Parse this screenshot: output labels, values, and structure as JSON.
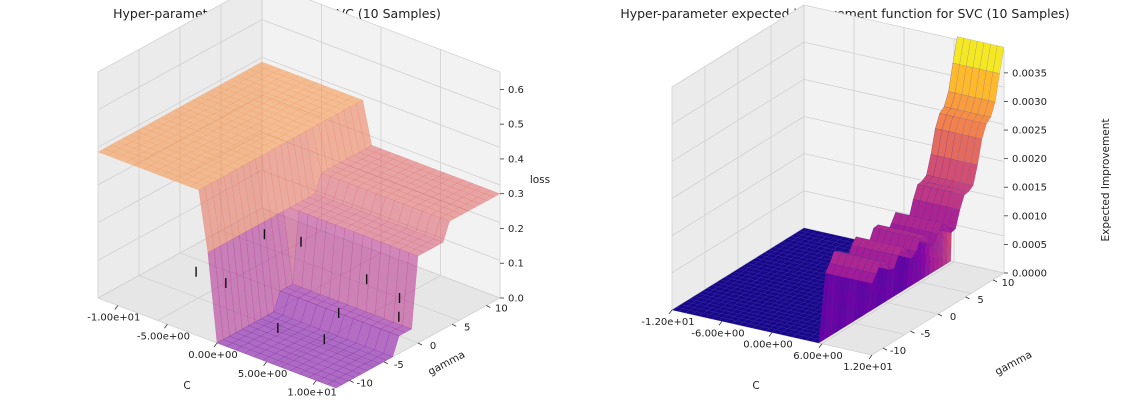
{
  "chart_data": [
    {
      "type": "surface3d",
      "title": "Hyper-parameter loss function for SVC (10 Samples)",
      "xlabel": "C",
      "ylabel": "gamma",
      "zlabel": "loss",
      "xlim": [
        -12,
        12
      ],
      "ylim": [
        -12,
        12
      ],
      "zlim": [
        0,
        0.65
      ],
      "x_ticks": [
        "-1.00e+01",
        "-5.00e+00",
        "0.00e+00",
        "5.00e+00",
        "1.00e+01"
      ],
      "x_tick_values": [
        -10,
        -5,
        0,
        5,
        10
      ],
      "y_ticks": [
        "-10",
        "-5",
        "0",
        "5",
        "10"
      ],
      "y_tick_values": [
        -10,
        -5,
        0,
        5,
        10
      ],
      "z_ticks": [
        "0.0",
        "0.1",
        "0.2",
        "0.3",
        "0.4",
        "0.5",
        "0.6"
      ],
      "z_tick_values": [
        0,
        0.1,
        0.2,
        0.3,
        0.4,
        0.5,
        0.6
      ],
      "colormap": "plasma",
      "alpha": 0.55,
      "grid": true,
      "surface": {
        "c_steps": [
          -12,
          -4,
          -1,
          0,
          2,
          5,
          12
        ],
        "levels": [
          0.42,
          0.42,
          0.3,
          0.61,
          0.61,
          0.61,
          0.61
        ],
        "gamma_steps": [
          -12,
          -6,
          -3,
          0,
          4,
          12
        ],
        "gamma_levels": [
          0.0,
          0.0,
          0.05,
          0.25,
          0.3,
          0.3
        ]
      },
      "samples": [
        {
          "C": -9,
          "gamma": 8
        },
        {
          "C": -6,
          "gamma": 9
        },
        {
          "C": -9,
          "gamma": -2
        },
        {
          "C": -6,
          "gamma": -2
        },
        {
          "C": 2,
          "gamma": 7
        },
        {
          "C": 6,
          "gamma": 6
        },
        {
          "C": 8,
          "gamma": 3
        },
        {
          "C": 4,
          "gamma": 0
        },
        {
          "C": 2,
          "gamma": -6
        },
        {
          "C": 6,
          "gamma": -5
        }
      ]
    },
    {
      "type": "surface3d",
      "title": "Hyper-parameter expected improvement function for SVC (10 Samples)",
      "xlabel": "C",
      "ylabel": "gamma",
      "zlabel": "Expected Improvement",
      "xlim": [
        -12,
        12
      ],
      "ylim": [
        -12,
        12
      ],
      "zlim": [
        0,
        0.0039
      ],
      "x_ticks": [
        "-1.20e+01",
        "-6.00e+00",
        "0.00e+00",
        "6.00e+00",
        "1.20e+01"
      ],
      "x_tick_values": [
        -12,
        -6,
        0,
        6,
        12
      ],
      "y_ticks": [
        "-10",
        "-5",
        "0",
        "5",
        "10"
      ],
      "y_tick_values": [
        -10,
        -5,
        0,
        5,
        10
      ],
      "z_ticks": [
        "0.0000",
        "0.0005",
        "0.0010",
        "0.0015",
        "0.0020",
        "0.0025",
        "0.0030",
        "0.0035"
      ],
      "z_tick_values": [
        0,
        0.0005,
        0.001,
        0.0015,
        0.002,
        0.0025,
        0.003,
        0.0035
      ],
      "colormap": "plasma",
      "alpha": 1.0,
      "grid": true,
      "surface": {
        "zero_region_c_max": 6,
        "wall_height": 0.0014,
        "ridge_gamma_start": 3,
        "ridge_peak": 0.0038
      }
    }
  ]
}
